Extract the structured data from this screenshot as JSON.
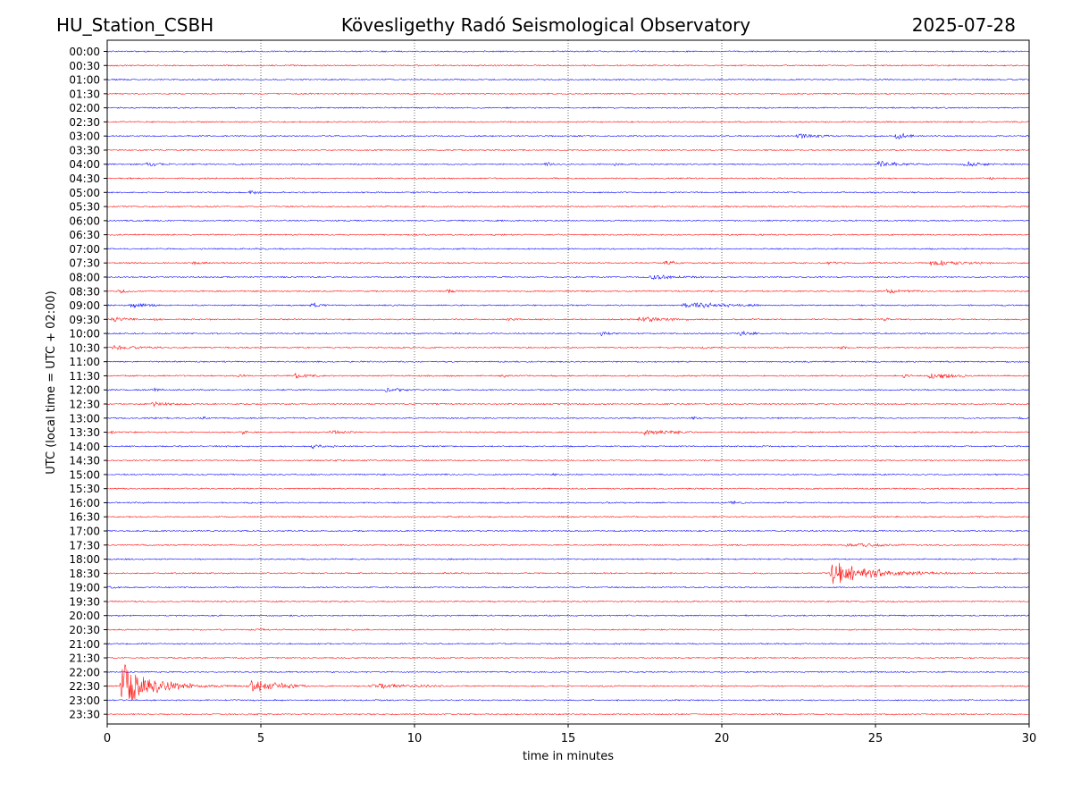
{
  "header": {
    "station": "HU_Station_CSBH",
    "observatory": "Kövesligethy Radó Seismological Observatory",
    "date": "2025-07-28"
  },
  "colors": {
    "trace_a": "#0000ff",
    "trace_b": "#ff0000",
    "grid": "#000000",
    "background": "#ffffff"
  },
  "chart_data": {
    "type": "line",
    "title": "Kövesligethy Radó Seismological Observatory",
    "xlabel": "time in minutes",
    "ylabel": "UTC (local time = UTC + 02:00)",
    "xlim": [
      0,
      30
    ],
    "x_ticks": [
      0,
      5,
      10,
      15,
      20,
      25,
      30
    ],
    "x_tick_labels": [
      "0",
      "5",
      "10",
      "15",
      "20",
      "25",
      "30"
    ],
    "vertical_gridlines": [
      5,
      10,
      15,
      20,
      25
    ],
    "grid": "vertical dotted",
    "row_labels": [
      "00:00",
      "00:30",
      "01:00",
      "01:30",
      "02:00",
      "02:30",
      "03:00",
      "03:30",
      "04:00",
      "04:30",
      "05:00",
      "05:30",
      "06:00",
      "06:30",
      "07:00",
      "07:30",
      "08:00",
      "08:30",
      "09:00",
      "09:30",
      "10:00",
      "10:30",
      "11:00",
      "11:30",
      "12:00",
      "12:30",
      "13:00",
      "13:30",
      "14:00",
      "14:30",
      "15:00",
      "15:30",
      "16:00",
      "16:30",
      "17:00",
      "17:30",
      "18:00",
      "18:30",
      "19:00",
      "19:30",
      "20:00",
      "20:30",
      "21:00",
      "21:30",
      "22:00",
      "22:30",
      "23:00",
      "23:30"
    ],
    "row_colors": [
      "trace_a",
      "trace_b"
    ],
    "events": [
      {
        "row": "03:00",
        "start": 22.4,
        "end": 23.5,
        "peak": 0.5,
        "decay": 0.5
      },
      {
        "row": "03:00",
        "start": 25.6,
        "end": 26.3,
        "peak": 1.0,
        "decay": 0.4
      },
      {
        "row": "04:00",
        "start": 1.2,
        "end": 2.2,
        "peak": 0.4,
        "decay": 0.5
      },
      {
        "row": "04:00",
        "start": 14.2,
        "end": 14.8,
        "peak": 0.4,
        "decay": 0.4
      },
      {
        "row": "04:00",
        "start": 16.4,
        "end": 16.8,
        "peak": 0.5,
        "decay": 0.4
      },
      {
        "row": "04:00",
        "start": 25.0,
        "end": 26.6,
        "peak": 0.6,
        "decay": 0.5
      },
      {
        "row": "04:00",
        "start": 27.8,
        "end": 29.0,
        "peak": 0.5,
        "decay": 0.5
      },
      {
        "row": "04:30",
        "start": 2.9,
        "end": 3.2,
        "peak": 0.4,
        "decay": 0.4
      },
      {
        "row": "04:30",
        "start": 28.7,
        "end": 29.0,
        "peak": 0.4,
        "decay": 0.4
      },
      {
        "row": "05:00",
        "start": 4.6,
        "end": 5.0,
        "peak": 0.8,
        "decay": 0.4
      },
      {
        "row": "07:30",
        "start": 2.7,
        "end": 3.3,
        "peak": 0.4,
        "decay": 0.5
      },
      {
        "row": "07:30",
        "start": 18.1,
        "end": 18.7,
        "peak": 0.6,
        "decay": 0.4
      },
      {
        "row": "07:30",
        "start": 23.4,
        "end": 24.0,
        "peak": 0.4,
        "decay": 0.5
      },
      {
        "row": "07:30",
        "start": 26.7,
        "end": 28.8,
        "peak": 0.5,
        "decay": 0.5
      },
      {
        "row": "08:00",
        "start": 17.6,
        "end": 19.4,
        "peak": 0.4,
        "decay": 0.5
      },
      {
        "row": "08:30",
        "start": 0.3,
        "end": 0.9,
        "peak": 0.4,
        "decay": 0.5
      },
      {
        "row": "08:30",
        "start": 11.0,
        "end": 11.6,
        "peak": 0.4,
        "decay": 0.5
      },
      {
        "row": "08:30",
        "start": 25.3,
        "end": 26.5,
        "peak": 0.5,
        "decay": 0.5
      },
      {
        "row": "09:00",
        "start": 0.7,
        "end": 1.7,
        "peak": 0.5,
        "decay": 0.5
      },
      {
        "row": "09:00",
        "start": 6.6,
        "end": 7.2,
        "peak": 0.7,
        "decay": 0.4
      },
      {
        "row": "09:00",
        "start": 18.7,
        "end": 21.2,
        "peak": 0.6,
        "decay": 0.5
      },
      {
        "row": "09:30",
        "start": 0.1,
        "end": 1.0,
        "peak": 0.6,
        "decay": 0.5
      },
      {
        "row": "09:30",
        "start": 1.5,
        "end": 1.8,
        "peak": 0.4,
        "decay": 0.4
      },
      {
        "row": "09:30",
        "start": 13.0,
        "end": 13.5,
        "peak": 0.4,
        "decay": 0.5
      },
      {
        "row": "09:30",
        "start": 17.2,
        "end": 19.1,
        "peak": 0.4,
        "decay": 0.5
      },
      {
        "row": "09:30",
        "start": 25.2,
        "end": 25.5,
        "peak": 0.5,
        "decay": 0.4
      },
      {
        "row": "10:00",
        "start": 11.3,
        "end": 11.5,
        "peak": 0.4,
        "decay": 0.4
      },
      {
        "row": "10:00",
        "start": 16.0,
        "end": 16.5,
        "peak": 0.6,
        "decay": 0.4
      },
      {
        "row": "10:00",
        "start": 20.5,
        "end": 21.2,
        "peak": 0.5,
        "decay": 0.5
      },
      {
        "row": "10:30",
        "start": 0.1,
        "end": 1.8,
        "peak": 0.4,
        "decay": 0.5
      },
      {
        "row": "10:30",
        "start": 19.3,
        "end": 19.7,
        "peak": 0.5,
        "decay": 0.4
      },
      {
        "row": "10:30",
        "start": 23.8,
        "end": 24.2,
        "peak": 0.5,
        "decay": 0.4
      },
      {
        "row": "11:30",
        "start": 4.2,
        "end": 4.6,
        "peak": 0.4,
        "decay": 0.4
      },
      {
        "row": "11:30",
        "start": 6.0,
        "end": 6.9,
        "peak": 0.5,
        "decay": 0.5
      },
      {
        "row": "11:30",
        "start": 12.8,
        "end": 13.2,
        "peak": 0.4,
        "decay": 0.4
      },
      {
        "row": "11:30",
        "start": 25.8,
        "end": 26.2,
        "peak": 0.6,
        "decay": 0.4
      },
      {
        "row": "11:30",
        "start": 26.7,
        "end": 28.0,
        "peak": 0.8,
        "decay": 0.5
      },
      {
        "row": "12:00",
        "start": 1.4,
        "end": 1.9,
        "peak": 0.4,
        "decay": 0.5
      },
      {
        "row": "12:00",
        "start": 9.0,
        "end": 9.8,
        "peak": 0.5,
        "decay": 0.5
      },
      {
        "row": "12:30",
        "start": 1.4,
        "end": 2.6,
        "peak": 0.4,
        "decay": 0.5
      },
      {
        "row": "12:30",
        "start": 18.1,
        "end": 18.5,
        "peak": 0.4,
        "decay": 0.4
      },
      {
        "row": "13:00",
        "start": 3.0,
        "end": 3.4,
        "peak": 0.4,
        "decay": 0.4
      },
      {
        "row": "13:00",
        "start": 19.0,
        "end": 19.4,
        "peak": 0.4,
        "decay": 0.4
      },
      {
        "row": "13:00",
        "start": 29.5,
        "end": 30.0,
        "peak": 0.4,
        "decay": 0.4
      },
      {
        "row": "13:30",
        "start": 0.0,
        "end": 0.5,
        "peak": 0.3,
        "decay": 0.5
      },
      {
        "row": "13:30",
        "start": 4.3,
        "end": 4.8,
        "peak": 0.5,
        "decay": 0.4
      },
      {
        "row": "13:30",
        "start": 7.2,
        "end": 8.1,
        "peak": 0.4,
        "decay": 0.5
      },
      {
        "row": "13:30",
        "start": 17.4,
        "end": 19.2,
        "peak": 0.5,
        "decay": 0.5
      },
      {
        "row": "14:00",
        "start": 6.6,
        "end": 7.4,
        "peak": 0.4,
        "decay": 0.5
      },
      {
        "row": "15:00",
        "start": 14.5,
        "end": 14.7,
        "peak": 0.4,
        "decay": 0.4
      },
      {
        "row": "16:00",
        "start": 20.2,
        "end": 20.9,
        "peak": 0.3,
        "decay": 0.5
      },
      {
        "row": "17:30",
        "start": 24.0,
        "end": 26.0,
        "peak": 0.4,
        "decay": 0.5
      },
      {
        "row": "18:30",
        "start": 23.5,
        "end": 30.0,
        "peak": 2.2,
        "decay": 0.18
      },
      {
        "row": "19:00",
        "start": 0.0,
        "end": 0.4,
        "peak": 0.3,
        "decay": 0.5
      },
      {
        "row": "20:00",
        "start": 14.2,
        "end": 14.5,
        "peak": 0.3,
        "decay": 0.4
      },
      {
        "row": "20:30",
        "start": 4.8,
        "end": 5.2,
        "peak": 0.3,
        "decay": 0.4
      },
      {
        "row": "22:30",
        "start": 0.4,
        "end": 12.0,
        "peak": 5.0,
        "decay": 0.07
      },
      {
        "row": "22:30",
        "start": 4.6,
        "end": 6.5,
        "peak": 1.2,
        "decay": 0.5
      },
      {
        "row": "22:30",
        "start": 8.5,
        "end": 11.0,
        "peak": 0.5,
        "decay": 0.5
      },
      {
        "row": "23:30",
        "start": 21.6,
        "end": 22.0,
        "peak": 0.3,
        "decay": 0.4
      }
    ]
  }
}
